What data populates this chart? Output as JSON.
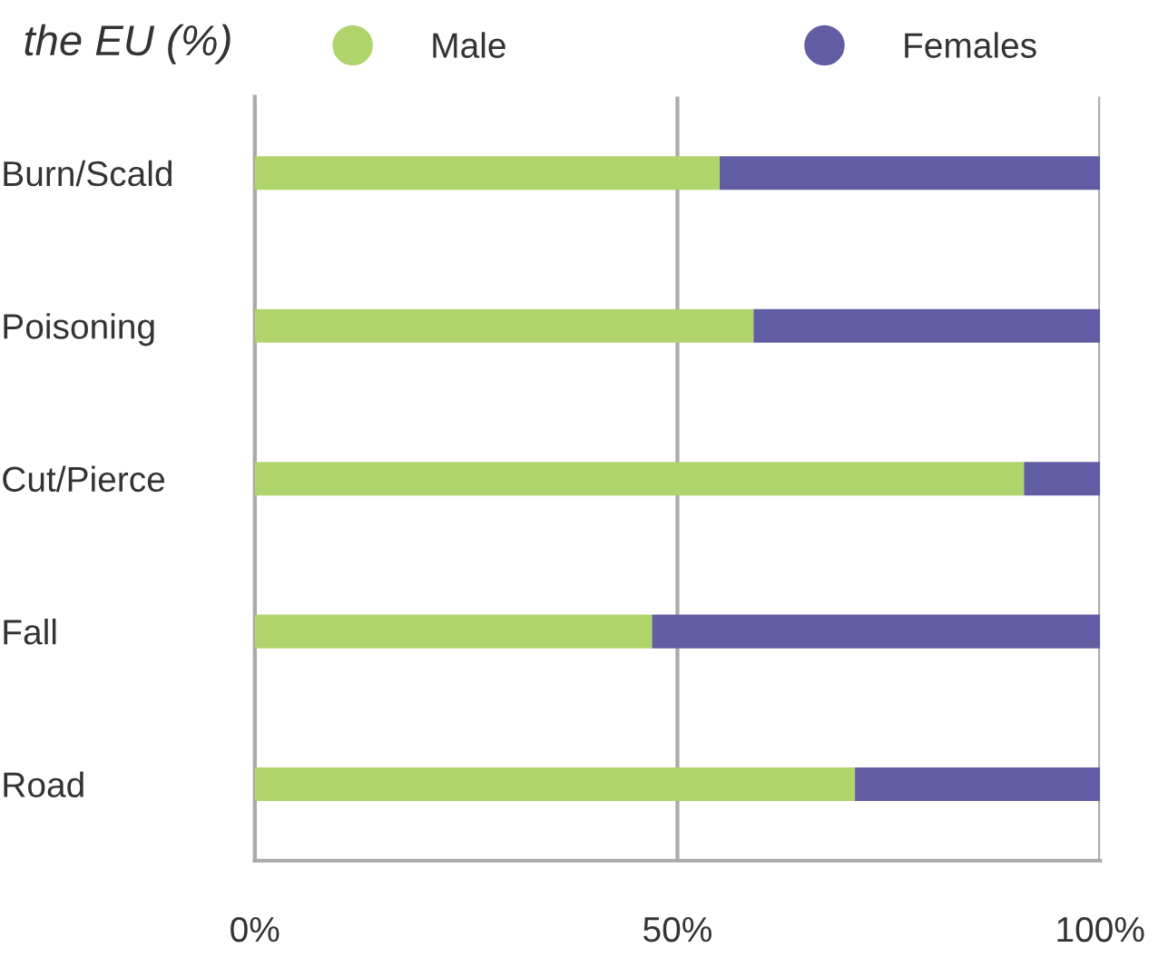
{
  "chart_data": {
    "type": "bar",
    "orientation": "horizontal",
    "stacked": true,
    "title": "the EU (%)",
    "categories": [
      "Burn/Scald",
      "Poisoning",
      "Cut/Pierce",
      "Fall",
      "Road"
    ],
    "series": [
      {
        "name": "Male",
        "color": "#b0d46c",
        "values": [
          55,
          59,
          91,
          47,
          71
        ]
      },
      {
        "name": "Females",
        "color": "#625da3",
        "values": [
          45,
          41,
          9,
          53,
          29
        ]
      }
    ],
    "xlim": [
      0,
      100
    ],
    "xticks": [
      {
        "value": 0,
        "label": "0%"
      },
      {
        "value": 50,
        "label": "50%"
      },
      {
        "value": 100,
        "label": "100%"
      }
    ],
    "grid": "x",
    "legend": "top"
  }
}
